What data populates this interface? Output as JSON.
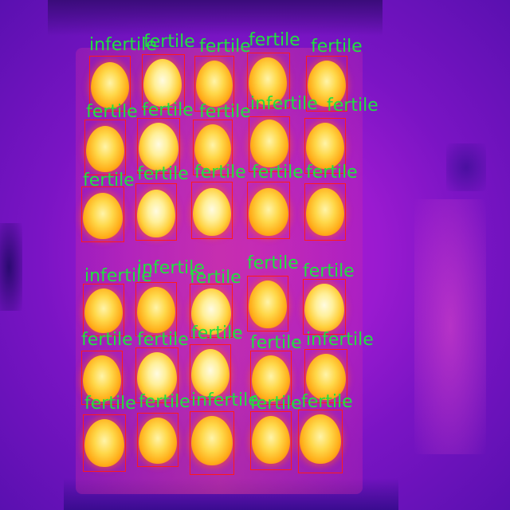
{
  "image": {
    "description": "thermal image of egg tray with detection labels",
    "colors": {
      "label": "#22e040",
      "box": "#ff1a1a"
    }
  },
  "labels": [
    {
      "text": "infertile"
    },
    {
      "text": "fertile"
    },
    {
      "text": "fertile"
    },
    {
      "text": "fertile"
    },
    {
      "text": "fertile"
    },
    {
      "text": "fertile"
    },
    {
      "text": "fertile"
    },
    {
      "text": "fertile"
    },
    {
      "text": "infertile"
    },
    {
      "text": "fertile"
    },
    {
      "text": "fertile"
    },
    {
      "text": "fertile"
    },
    {
      "text": "fertile"
    },
    {
      "text": "fertile"
    },
    {
      "text": "fertile"
    },
    {
      "text": "infertile"
    },
    {
      "text": "infertile"
    },
    {
      "text": "fertile"
    },
    {
      "text": "fertile"
    },
    {
      "text": "fertile"
    },
    {
      "text": "fertile"
    },
    {
      "text": "fertile"
    },
    {
      "text": "fertile"
    },
    {
      "text": "fertile"
    },
    {
      "text": "infertile"
    },
    {
      "text": "fertile"
    },
    {
      "text": "fertile"
    },
    {
      "text": "infertile"
    },
    {
      "text": "fertile"
    },
    {
      "text": "fertile"
    }
  ]
}
